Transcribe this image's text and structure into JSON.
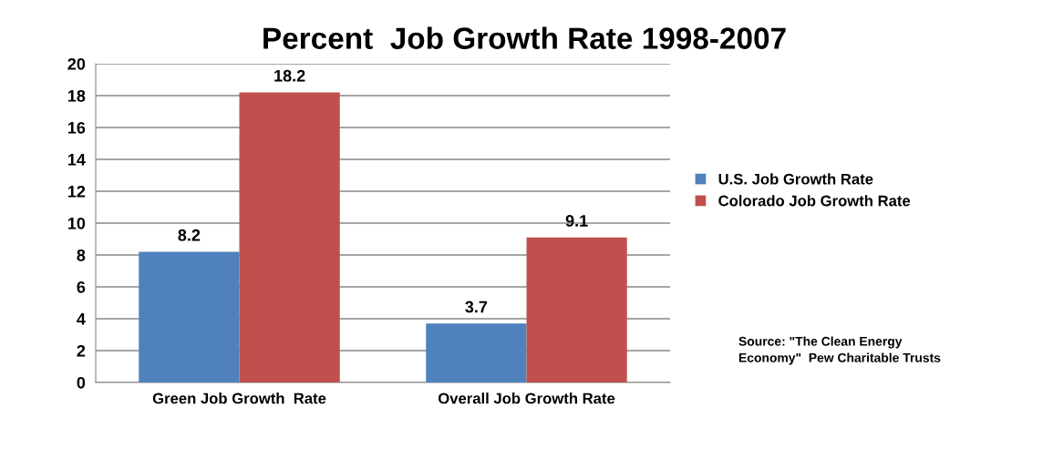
{
  "chart_data": {
    "type": "bar",
    "title": "Percent  Job Growth Rate 1998-2007",
    "categories": [
      "Green Job Growth  Rate",
      "Overall Job Growth Rate"
    ],
    "series": [
      {
        "name": "U.S. Job Growth Rate",
        "color": "#4f81bd",
        "values": [
          8.2,
          3.7
        ]
      },
      {
        "name": "Colorado Job Growth Rate",
        "color": "#c0504d",
        "values": [
          18.2,
          9.1
        ]
      }
    ],
    "ylim": [
      0,
      20
    ],
    "yticks": [
      0,
      2,
      4,
      6,
      8,
      10,
      12,
      14,
      16,
      18,
      20
    ],
    "grid": "y",
    "legend": "right",
    "data_labels": true,
    "annotations": [
      "Source: \"The Clean Energy\nEconomy\"  Pew Charitable Trusts"
    ]
  }
}
